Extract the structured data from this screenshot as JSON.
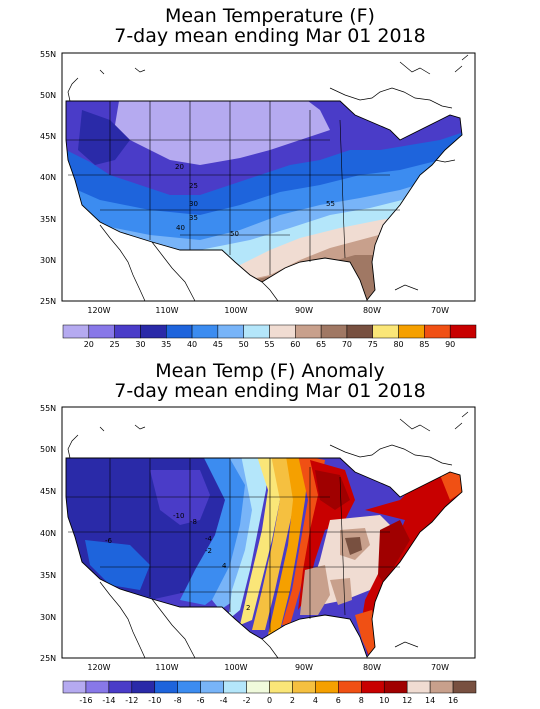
{
  "top": {
    "title_line1": "Mean Temperature (F)",
    "title_line2": "7-day mean ending Mar 01 2018",
    "lat_labels": [
      "55N",
      "50N",
      "45N",
      "40N",
      "35N",
      "30N",
      "25N"
    ],
    "lon_labels": [
      "120W",
      "110W",
      "100W",
      "90W",
      "80W",
      "70W"
    ],
    "contour_labels": [
      "20",
      "25",
      "30",
      "35",
      "40",
      "50",
      "55"
    ],
    "legend_values": [
      "20",
      "25",
      "30",
      "35",
      "40",
      "45",
      "50",
      "55",
      "60",
      "65",
      "70",
      "75",
      "80",
      "85",
      "90"
    ],
    "legend_colors": [
      "#b5aaf0",
      "#8878e8",
      "#4a3cc8",
      "#2a2aa8",
      "#1e64dc",
      "#3c8cf0",
      "#78b4f8",
      "#b4e6fa",
      "#f0dcd2",
      "#c8a08c",
      "#a07864",
      "#785040",
      "#fae678",
      "#f5a000",
      "#f05014",
      "#c80000"
    ]
  },
  "bottom": {
    "title_line1": "Mean Temp (F) Anomaly",
    "title_line2": "7-day mean ending Mar 01 2018",
    "lat_labels": [
      "55N",
      "50N",
      "45N",
      "40N",
      "35N",
      "30N",
      "25N"
    ],
    "lon_labels": [
      "120W",
      "110W",
      "100W",
      "90W",
      "80W",
      "70W"
    ],
    "contour_labels": [
      "-10",
      "-8",
      "-6",
      "-4",
      "-2",
      "2",
      "4"
    ],
    "legend_values": [
      "-16",
      "-14",
      "-12",
      "-10",
      "-8",
      "-6",
      "-4",
      "-2",
      "0",
      "2",
      "4",
      "6",
      "8",
      "10",
      "12",
      "14",
      "16"
    ],
    "legend_colors": [
      "#b5aaf0",
      "#8878e8",
      "#4a3cc8",
      "#2a2aa8",
      "#1e64dc",
      "#3c8cf0",
      "#78b4f8",
      "#b4e6fa",
      "#f0fadc",
      "#fae678",
      "#f5c040",
      "#f5a000",
      "#f05014",
      "#c80000",
      "#a00000",
      "#f0dcd2",
      "#c8a08c",
      "#785040"
    ]
  }
}
